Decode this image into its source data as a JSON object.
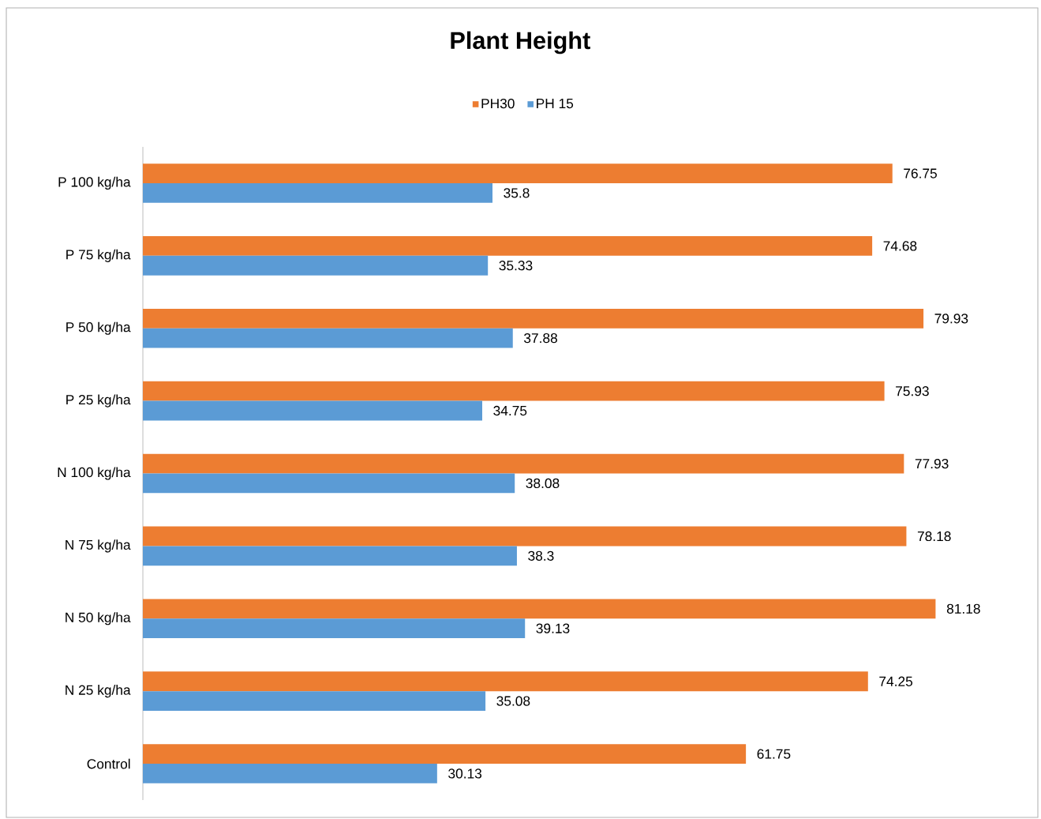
{
  "chart_data": {
    "type": "bar",
    "orientation": "horizontal",
    "title": "Plant Height",
    "categories": [
      "P 100 kg/ha",
      "P 75 kg/ha",
      "P 50 kg/ha",
      "P 25 kg/ha",
      "N 100 kg/ha",
      "N 75 kg/ha",
      "N 50 kg/ha",
      "N 25 kg/ha",
      "Control"
    ],
    "series": [
      {
        "name": "PH30",
        "color": "#ed7d31",
        "values": [
          76.75,
          74.68,
          79.93,
          75.93,
          77.93,
          78.18,
          81.18,
          74.25,
          61.75
        ]
      },
      {
        "name": "PH 15",
        "color": "#5b9bd5",
        "values": [
          35.8,
          35.33,
          37.88,
          34.75,
          38.08,
          38.3,
          39.13,
          35.08,
          30.13
        ]
      }
    ],
    "tick_labels": "y",
    "data_labels": true,
    "legend": "top"
  }
}
